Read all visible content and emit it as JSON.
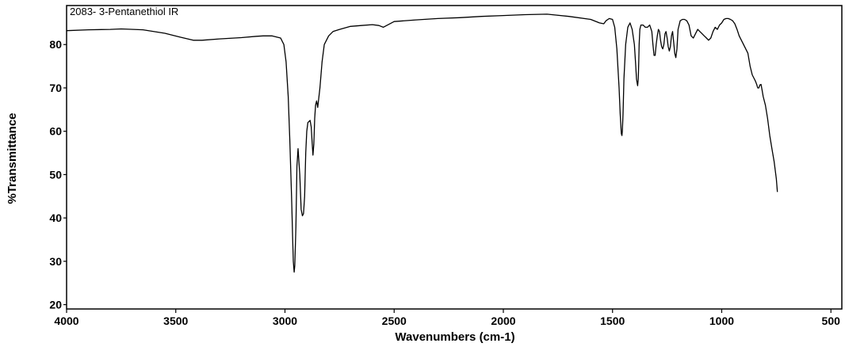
{
  "chart_data": {
    "type": "line",
    "title": "2083- 3-Pentanethiol IR",
    "xlabel": "Wavenumbers (cm-1)",
    "ylabel": "%Transmittance",
    "xlim": [
      4000,
      450
    ],
    "ylim": [
      19,
      89
    ],
    "x_reversed": true,
    "grid": false,
    "xticks": [
      4000,
      3500,
      3000,
      2500,
      2000,
      1500,
      1000,
      500
    ],
    "yticks": [
      20,
      30,
      40,
      50,
      60,
      70,
      80
    ],
    "series": [
      {
        "x": [
          4000,
          3900,
          3800,
          3750,
          3650,
          3550,
          3480,
          3420,
          3380,
          3300,
          3200,
          3130,
          3100,
          3060,
          3020,
          3005,
          2995,
          2985,
          2978,
          2970,
          2965,
          2962,
          2958,
          2955,
          2950,
          2945,
          2940,
          2932,
          2926,
          2920,
          2915,
          2910,
          2905,
          2900,
          2895,
          2885,
          2880,
          2875,
          2872,
          2868,
          2864,
          2860,
          2855,
          2850,
          2840,
          2830,
          2820,
          2800,
          2780,
          2750,
          2700,
          2650,
          2600,
          2570,
          2550,
          2500,
          2400,
          2300,
          2200,
          2100,
          2000,
          1900,
          1800,
          1760,
          1700,
          1600,
          1560,
          1540,
          1530,
          1515,
          1500,
          1490,
          1480,
          1470,
          1465,
          1460,
          1457,
          1455,
          1452,
          1448,
          1440,
          1430,
          1420,
          1410,
          1400,
          1395,
          1390,
          1385,
          1382,
          1380,
          1378,
          1375,
          1370,
          1360,
          1350,
          1340,
          1330,
          1320,
          1315,
          1310,
          1305,
          1300,
          1295,
          1290,
          1285,
          1280,
          1275,
          1270,
          1265,
          1260,
          1255,
          1250,
          1245,
          1240,
          1235,
          1230,
          1225,
          1220,
          1215,
          1210,
          1205,
          1200,
          1190,
          1180,
          1170,
          1160,
          1150,
          1140,
          1130,
          1120,
          1110,
          1100,
          1090,
          1080,
          1070,
          1060,
          1050,
          1040,
          1030,
          1020,
          1010,
          1000,
          990,
          980,
          970,
          960,
          950,
          940,
          930,
          920,
          900,
          880,
          870,
          860,
          850,
          845,
          840,
          835,
          830,
          825,
          820,
          815,
          810,
          800,
          790,
          780,
          770,
          760,
          750,
          745
        ],
        "y": [
          83.2,
          83.4,
          83.5,
          83.6,
          83.4,
          82.6,
          81.7,
          81.0,
          81.0,
          81.3,
          81.6,
          81.9,
          82.0,
          82.0,
          81.5,
          80.0,
          76.0,
          68.0,
          58.0,
          45.0,
          36.0,
          30.0,
          27.5,
          29.0,
          38.0,
          52.0,
          56.0,
          50.0,
          42.0,
          40.5,
          41.0,
          45.0,
          55.0,
          60.0,
          62.0,
          62.5,
          61.0,
          57.0,
          54.5,
          57.0,
          63.0,
          66.0,
          67.0,
          65.5,
          70.0,
          76.0,
          80.0,
          82.0,
          83.0,
          83.5,
          84.2,
          84.4,
          84.6,
          84.4,
          84.0,
          85.3,
          85.7,
          86.0,
          86.2,
          86.5,
          86.7,
          86.9,
          87.0,
          86.8,
          86.5,
          85.8,
          85.0,
          84.8,
          85.5,
          86.0,
          85.8,
          84.0,
          79.0,
          70.0,
          64.0,
          59.5,
          59.0,
          60.0,
          64.0,
          72.0,
          80.0,
          84.0,
          85.0,
          83.5,
          80.0,
          76.0,
          72.0,
          70.5,
          72.0,
          76.0,
          80.0,
          83.5,
          84.5,
          84.5,
          84.0,
          84.0,
          84.5,
          83.0,
          80.0,
          77.5,
          77.5,
          80.0,
          82.0,
          83.5,
          83.0,
          81.0,
          79.5,
          79.0,
          80.0,
          82.5,
          83.0,
          81.5,
          79.5,
          78.5,
          79.5,
          82.0,
          83.0,
          80.5,
          78.0,
          77.0,
          79.0,
          83.5,
          85.5,
          85.8,
          85.8,
          85.5,
          84.5,
          82.0,
          81.5,
          82.5,
          83.5,
          83.0,
          82.5,
          82.0,
          81.5,
          81.0,
          81.5,
          83.0,
          84.0,
          83.5,
          84.5,
          85.0,
          85.8,
          86.0,
          86.0,
          85.8,
          85.5,
          84.8,
          83.5,
          82.0,
          80.0,
          78.0,
          75.0,
          73.0,
          72.0,
          71.5,
          70.8,
          70.0,
          70.0,
          70.7,
          70.8,
          69.5,
          68.0,
          66.0,
          63.0,
          59.0,
          56.0,
          53.0,
          49.0,
          46.0
        ]
      }
    ]
  }
}
